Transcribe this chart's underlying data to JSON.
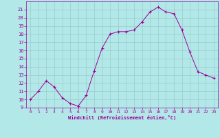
{
  "x": [
    0,
    1,
    2,
    3,
    4,
    5,
    6,
    7,
    8,
    9,
    10,
    11,
    12,
    13,
    14,
    15,
    16,
    17,
    18,
    19,
    20,
    21,
    22,
    23
  ],
  "y": [
    10,
    11,
    12.3,
    11.5,
    10.2,
    9.5,
    9.2,
    10.5,
    13.5,
    16.3,
    18.0,
    18.3,
    18.3,
    18.5,
    19.5,
    20.7,
    21.3,
    20.7,
    20.5,
    18.5,
    15.8,
    13.4,
    13.0,
    12.6
  ],
  "line_color": "#990099",
  "marker": "+",
  "marker_color": "#990099",
  "bg_color": "#b3e8e8",
  "grid_color": "#99cccc",
  "xlabel": "Windchill (Refroidissement éolien,°C)",
  "xlabel_color": "#990099",
  "tick_color": "#990099",
  "spine_color": "#990099",
  "ylim": [
    9,
    22
  ],
  "xlim": [
    -0.5,
    23.5
  ],
  "yticks": [
    9,
    10,
    11,
    12,
    13,
    14,
    15,
    16,
    17,
    18,
    19,
    20,
    21
  ],
  "xticks": [
    0,
    1,
    2,
    3,
    4,
    5,
    6,
    7,
    8,
    9,
    10,
    11,
    12,
    13,
    14,
    15,
    16,
    17,
    18,
    19,
    20,
    21,
    22,
    23
  ],
  "figsize": [
    3.2,
    2.0
  ],
  "dpi": 100
}
